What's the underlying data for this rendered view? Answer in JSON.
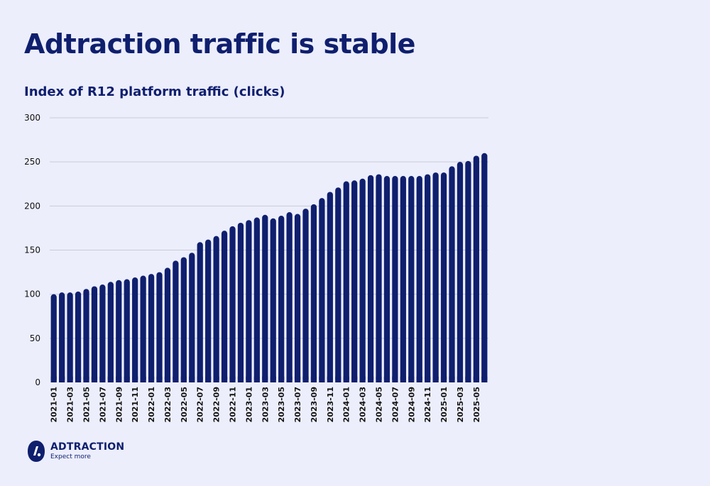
{
  "title": "Adtraction traffic is stable",
  "subtitle": "Index of R12 platform traffic (clicks)",
  "brand": {
    "name": "ADTRACTION",
    "tagline": "Expect more"
  },
  "colors": {
    "bar": "#0f1f6e",
    "background": "#eceefc",
    "grid": "#c9ccd8"
  },
  "chart_data": {
    "type": "bar",
    "title": "Index of R12 platform traffic (clicks)",
    "xlabel": "",
    "ylabel": "",
    "ylim": [
      0,
      300
    ],
    "yticks": [
      0,
      50,
      100,
      150,
      200,
      250,
      300
    ],
    "grid": "horizontal",
    "categories": [
      "2021-01",
      "2021-02",
      "2021-03",
      "2021-04",
      "2021-05",
      "2021-06",
      "2021-07",
      "2021-08",
      "2021-09",
      "2021-10",
      "2021-11",
      "2021-12",
      "2022-01",
      "2022-02",
      "2022-03",
      "2022-04",
      "2022-05",
      "2022-06",
      "2022-07",
      "2022-08",
      "2022-09",
      "2022-10",
      "2022-11",
      "2022-12",
      "2023-01",
      "2023-02",
      "2023-03",
      "2023-04",
      "2023-05",
      "2023-06",
      "2023-07",
      "2023-08",
      "2023-09",
      "2023-10",
      "2023-11",
      "2023-12",
      "2024-01",
      "2024-02",
      "2024-03",
      "2024-04",
      "2024-05",
      "2024-06",
      "2024-07",
      "2024-08",
      "2024-09",
      "2024-10",
      "2024-11",
      "2024-12",
      "2025-01",
      "2025-02",
      "2025-03",
      "2025-04",
      "2025-05",
      "2025-06"
    ],
    "tick_labels": [
      "2021-01",
      "2021-03",
      "2021-05",
      "2021-07",
      "2021-09",
      "2021-11",
      "2022-01",
      "2022-03",
      "2022-05",
      "2022-07",
      "2022-09",
      "2022-11",
      "2023-01",
      "2023-03",
      "2023-05",
      "2023-07",
      "2023-09",
      "2023-11",
      "2024-01",
      "2024-03",
      "2024-05",
      "2024-07",
      "2024-09",
      "2024-11",
      "2025-01",
      "2025-03",
      "2025-05"
    ],
    "values": [
      100,
      102,
      102,
      103,
      106,
      109,
      111,
      114,
      116,
      117,
      119,
      121,
      123,
      125,
      130,
      138,
      142,
      147,
      159,
      162,
      166,
      172,
      177,
      181,
      184,
      187,
      190,
      186,
      189,
      193,
      191,
      197,
      202,
      209,
      216,
      221,
      228,
      229,
      231,
      235,
      236,
      234,
      234,
      234,
      234,
      234,
      236,
      238,
      238,
      245,
      250,
      251,
      257,
      260
    ]
  }
}
